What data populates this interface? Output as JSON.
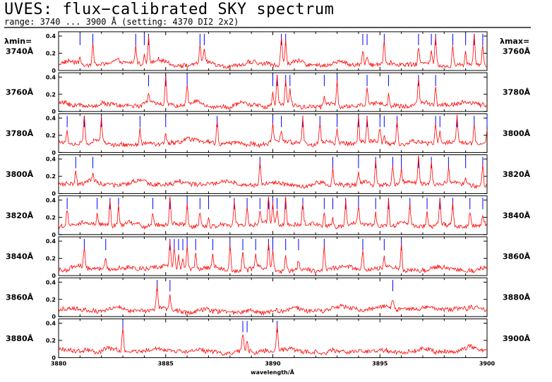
{
  "header": {
    "title": "UVES: flux−calibrated SKY spectrum",
    "subtitle": "range: 3740 ... 3900 Å  (setting: 4370 DI2 2x2)"
  },
  "left_header": "λmin=",
  "right_header": "λmax=",
  "colors": {
    "spectrum": "#ff0000",
    "lines": "#0000ff",
    "frame": "#000000"
  },
  "chart_data": {
    "type": "line",
    "xlabel": "wavelength/Å",
    "ylabel": "",
    "x_axis_ticks": [
      "3880",
      "3885",
      "3890",
      "3895",
      "3900"
    ],
    "y_ticks": [
      "0",
      "0.2",
      "0.4"
    ],
    "ylim": [
      0,
      0.45
    ],
    "grid": false,
    "panels": [
      {
        "lambda_min": "3740Å",
        "lambda_max": "3760Å",
        "range": [
          3740,
          3760
        ],
        "line_marks": [
          0.05,
          0.08,
          0.18,
          0.2,
          0.21,
          0.33,
          0.34,
          0.52,
          0.53,
          0.71,
          0.72,
          0.76,
          0.84,
          0.87,
          0.88,
          0.92,
          0.95,
          0.97,
          0.99
        ]
      },
      {
        "lambda_min": "3760Å",
        "lambda_max": "3780Å",
        "range": [
          3760,
          3780
        ],
        "line_marks": [
          0.21,
          0.25,
          0.3,
          0.5,
          0.51,
          0.53,
          0.54,
          0.62,
          0.65,
          0.72,
          0.77,
          0.84,
          0.88
        ]
      },
      {
        "lambda_min": "3780Å",
        "lambda_max": "3800Å",
        "range": [
          3780,
          3800
        ],
        "line_marks": [
          0.02,
          0.06,
          0.1,
          0.19,
          0.25,
          0.37,
          0.5,
          0.52,
          0.57,
          0.61,
          0.65,
          0.7,
          0.72,
          0.75,
          0.76,
          0.79,
          0.88,
          0.89,
          0.93,
          0.97,
          1.0
        ]
      },
      {
        "lambda_min": "3800Å",
        "lambda_max": "3820Å",
        "range": [
          3800,
          3820
        ],
        "line_marks": [
          0.04,
          0.08,
          0.47,
          0.64,
          0.7,
          0.74,
          0.78,
          0.8,
          0.84,
          0.87,
          0.91,
          0.95,
          0.99
        ]
      },
      {
        "lambda_min": "3820Å",
        "lambda_max": "3840Å",
        "range": [
          3820,
          3840
        ],
        "line_marks": [
          0.02,
          0.09,
          0.12,
          0.14,
          0.22,
          0.26,
          0.3,
          0.33,
          0.35,
          0.41,
          0.44,
          0.47,
          0.49,
          0.5,
          0.51,
          0.53,
          0.57,
          0.62,
          0.64,
          0.67,
          0.7,
          0.74,
          0.77,
          0.82,
          0.86,
          0.89,
          0.92,
          0.96,
          0.99
        ]
      },
      {
        "lambda_min": "3840Å",
        "lambda_max": "3860Å",
        "range": [
          3840,
          3860
        ],
        "line_marks": [
          0.06,
          0.11,
          0.26,
          0.27,
          0.28,
          0.29,
          0.3,
          0.32,
          0.36,
          0.4,
          0.43,
          0.46,
          0.49,
          0.5,
          0.53,
          0.56,
          0.62,
          0.71,
          0.76,
          0.8
        ]
      },
      {
        "lambda_min": "3860Å",
        "lambda_max": "3880Å",
        "range": [
          3860,
          3880
        ],
        "line_marks": [
          0.23,
          0.26,
          0.78
        ]
      },
      {
        "lambda_min": "3880Å",
        "lambda_max": "3900Å",
        "range": [
          3880,
          3900
        ],
        "line_marks": [
          0.15,
          0.43,
          0.44,
          0.51
        ]
      }
    ]
  }
}
